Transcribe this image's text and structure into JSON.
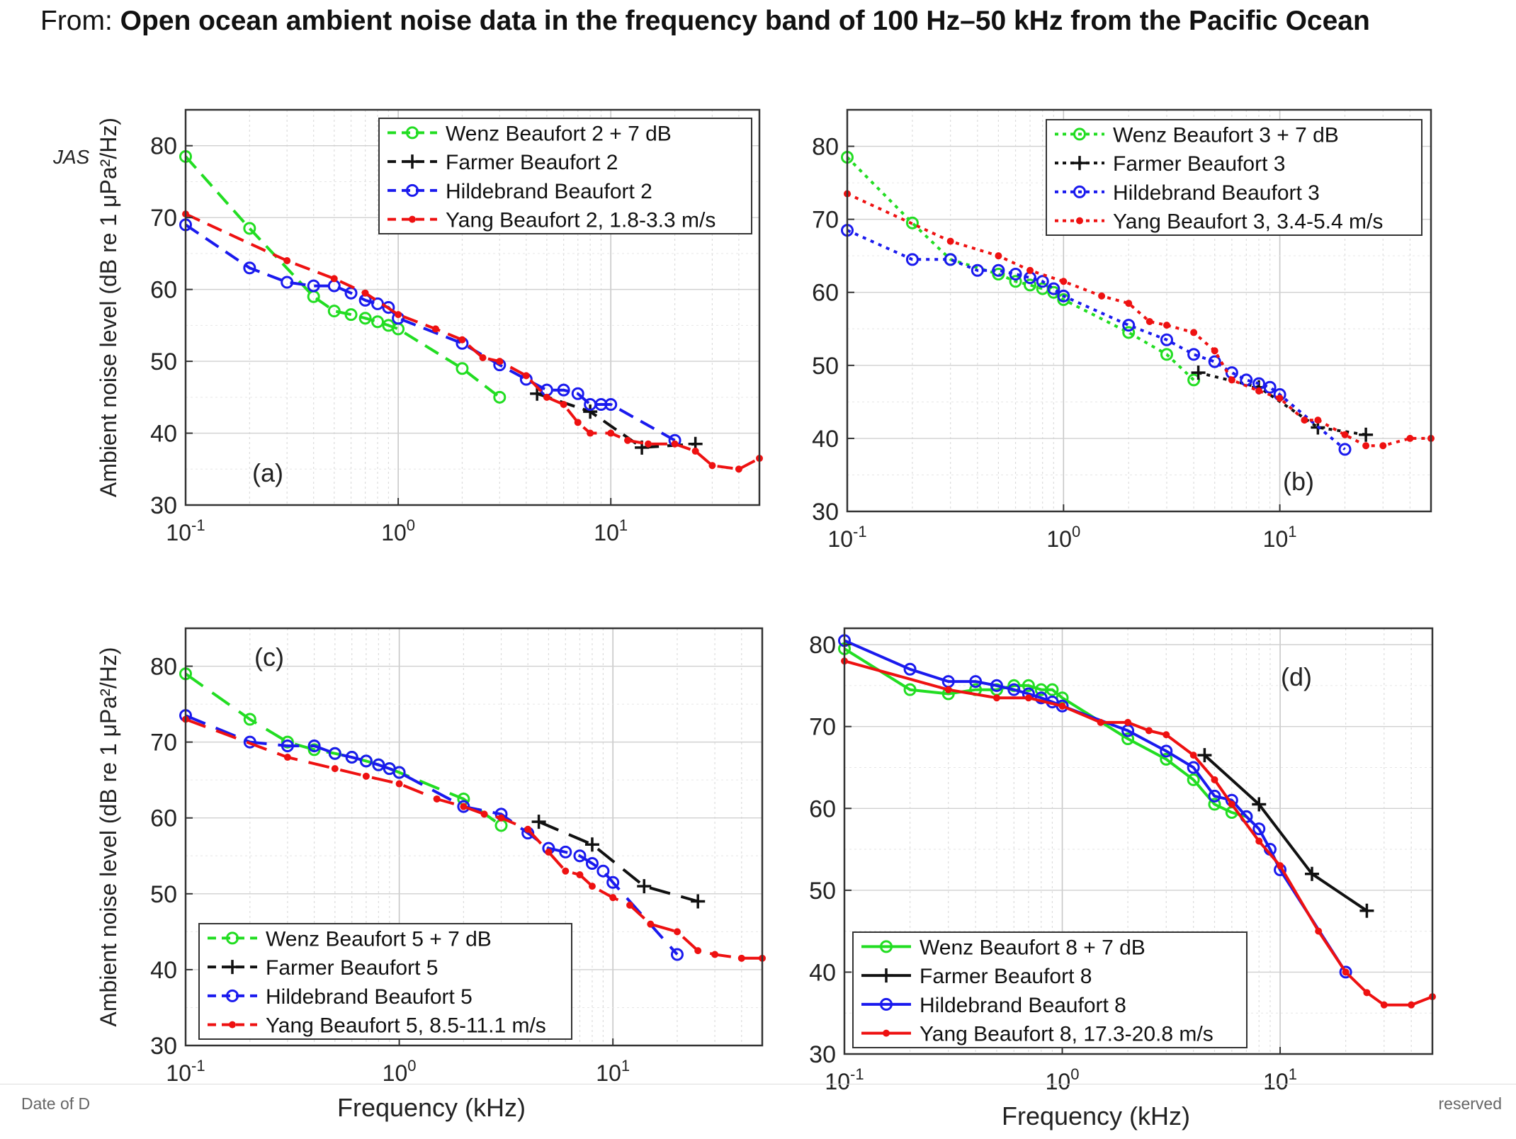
{
  "header": {
    "from_label": "From: ",
    "title": "Open ocean ambient noise data in the frequency band of 100 Hz–50 kHz from the Pacific Ocean"
  },
  "side_text": "JAS",
  "footer": {
    "left": "Date of D",
    "right": "reserved"
  },
  "colors": {
    "wenz": "#22dd22",
    "farmer": "#111111",
    "hildebrand": "#1a1aee",
    "yang": "#ee1111"
  },
  "chart_data": [
    {
      "type": "line",
      "panel_label": "(a)",
      "x_scale": "log",
      "xlim": [
        0.1,
        50
      ],
      "ylim": [
        30,
        85
      ],
      "xticks": [
        "10-1",
        "100",
        "101"
      ],
      "yticks": [
        30,
        40,
        50,
        60,
        70,
        80
      ],
      "xlabel": "",
      "ylabel": "Ambient noise level (dB re 1 μPa²/Hz)",
      "grid": true,
      "line_style": "dashed",
      "legend_position": "top-right",
      "series": [
        {
          "name": "Wenz Beaufort 2 + 7 dB",
          "color_key": "wenz",
          "marker": "circle",
          "x": [
            0.1,
            0.2,
            0.4,
            0.5,
            0.6,
            0.7,
            0.8,
            0.9,
            1.0,
            2.0,
            3.0
          ],
          "y": [
            78.5,
            68.5,
            59,
            57,
            56.5,
            56,
            55.5,
            55,
            54.5,
            49,
            45
          ]
        },
        {
          "name": "Farmer Beaufort 2",
          "color_key": "farmer",
          "marker": "plus",
          "x": [
            4.5,
            8,
            14,
            25
          ],
          "y": [
            45.5,
            43,
            38,
            38.5
          ]
        },
        {
          "name": "Hildebrand Beaufort 2",
          "color_key": "hildebrand",
          "marker": "circle",
          "x": [
            0.1,
            0.2,
            0.3,
            0.4,
            0.5,
            0.6,
            0.7,
            0.8,
            0.9,
            1.0,
            2.0,
            3.0,
            4.0,
            5.0,
            6.0,
            7.0,
            8.0,
            9.0,
            10.0,
            20.0
          ],
          "y": [
            69,
            63,
            61,
            60.5,
            60.5,
            59.5,
            58.5,
            58,
            57.5,
            56,
            52.5,
            49.5,
            47.5,
            46,
            46,
            45.5,
            44,
            44,
            44,
            39
          ]
        },
        {
          "name": "Yang Beaufort 2, 1.8-3.3 m/s",
          "color_key": "yang",
          "marker": "dot",
          "x": [
            0.1,
            0.3,
            0.5,
            0.7,
            1.0,
            1.5,
            2.0,
            2.5,
            3.0,
            4.0,
            5.0,
            6.0,
            7.0,
            8.0,
            10.0,
            12.0,
            15.0,
            20.0,
            25.0,
            30.0,
            40.0,
            50.0
          ],
          "y": [
            70.5,
            64,
            61.5,
            59.5,
            56.5,
            54.5,
            53,
            50.5,
            50,
            48,
            45,
            44,
            41.5,
            40,
            40,
            39,
            38.5,
            38.5,
            37.5,
            35.5,
            35,
            36.5
          ]
        }
      ]
    },
    {
      "type": "line",
      "panel_label": "(b)",
      "x_scale": "log",
      "xlim": [
        0.1,
        50
      ],
      "ylim": [
        30,
        85
      ],
      "xticks": [
        "10-1",
        "100",
        "101"
      ],
      "yticks": [
        30,
        40,
        50,
        60,
        70,
        80
      ],
      "xlabel": "",
      "ylabel": "",
      "grid": true,
      "line_style": "dotted",
      "legend_position": "top-right",
      "series": [
        {
          "name": "Wenz Beaufort 3 + 7 dB",
          "color_key": "wenz",
          "marker": "circle",
          "x": [
            0.1,
            0.2,
            0.3,
            0.5,
            0.6,
            0.7,
            0.8,
            0.9,
            1.0,
            2.0,
            3.0,
            4.0
          ],
          "y": [
            78.5,
            69.5,
            64.5,
            62.5,
            61.5,
            61,
            60.5,
            60,
            59,
            54.5,
            51.5,
            48
          ]
        },
        {
          "name": "Farmer Beaufort 3",
          "color_key": "farmer",
          "marker": "plus",
          "x": [
            4.2,
            8,
            15,
            25
          ],
          "y": [
            49,
            47,
            41.5,
            40.5
          ]
        },
        {
          "name": "Hildebrand Beaufort 3",
          "color_key": "hildebrand",
          "marker": "circle",
          "x": [
            0.1,
            0.2,
            0.3,
            0.4,
            0.5,
            0.6,
            0.7,
            0.8,
            0.9,
            1.0,
            2.0,
            3.0,
            4.0,
            5.0,
            6.0,
            7.0,
            8.0,
            9.0,
            10.0,
            20.0
          ],
          "y": [
            68.5,
            64.5,
            64.5,
            63,
            63,
            62.5,
            62,
            61.5,
            60.5,
            59.5,
            55.5,
            53.5,
            51.5,
            50.5,
            49,
            48,
            47.5,
            47,
            46,
            38.5
          ]
        },
        {
          "name": "Yang Beaufort 3, 3.4-5.4 m/s",
          "color_key": "yang",
          "marker": "dot",
          "x": [
            0.1,
            0.3,
            0.5,
            0.7,
            1.0,
            1.5,
            2.0,
            2.5,
            3.0,
            4.0,
            5.0,
            6.0,
            8.0,
            10.0,
            13.0,
            15.0,
            20.0,
            25.0,
            30.0,
            40.0,
            50.0
          ],
          "y": [
            73.5,
            67,
            65,
            63,
            61.5,
            59.5,
            58.5,
            56,
            55.5,
            54.5,
            52,
            48,
            46.5,
            45.5,
            42.5,
            42.5,
            40.5,
            39,
            39,
            40,
            40
          ]
        }
      ]
    },
    {
      "type": "line",
      "panel_label": "(c)",
      "x_scale": "log",
      "xlim": [
        0.1,
        50
      ],
      "ylim": [
        30,
        85
      ],
      "xticks": [
        "10-1",
        "100",
        "101"
      ],
      "yticks": [
        30,
        40,
        50,
        60,
        70,
        80
      ],
      "xlabel": "Frequency (kHz)",
      "ylabel": "Ambient noise level (dB re 1 μPa²/Hz)",
      "grid": true,
      "line_style": "longdash",
      "legend_position": "bottom-left",
      "series": [
        {
          "name": "Wenz Beaufort 5 + 7 dB",
          "color_key": "wenz",
          "marker": "circle",
          "x": [
            0.1,
            0.2,
            0.3,
            0.4,
            0.5,
            0.6,
            0.7,
            0.8,
            0.9,
            1.0,
            2.0,
            3.0
          ],
          "y": [
            79,
            73,
            70,
            69,
            68.5,
            68,
            67.5,
            67,
            66.5,
            66,
            62.5,
            59
          ]
        },
        {
          "name": "Farmer Beaufort 5",
          "color_key": "farmer",
          "marker": "plus",
          "x": [
            4.5,
            8,
            14,
            25
          ],
          "y": [
            59.5,
            56.5,
            51,
            49
          ]
        },
        {
          "name": "Hildebrand Beaufort 5",
          "color_key": "hildebrand",
          "marker": "circle",
          "x": [
            0.1,
            0.2,
            0.3,
            0.4,
            0.5,
            0.6,
            0.7,
            0.8,
            0.9,
            1.0,
            2.0,
            3.0,
            4.0,
            5.0,
            6.0,
            7.0,
            8.0,
            9.0,
            10.0,
            20.0
          ],
          "y": [
            73.5,
            70,
            69.5,
            69.5,
            68.5,
            68,
            67.5,
            67,
            66.5,
            66,
            61.5,
            60.5,
            58,
            56,
            55.5,
            55,
            54,
            53,
            51.5,
            42
          ]
        },
        {
          "name": "Yang Beaufort 5, 8.5-11.1 m/s",
          "color_key": "yang",
          "marker": "dot",
          "x": [
            0.1,
            0.3,
            0.5,
            0.7,
            1.0,
            1.5,
            2.0,
            2.5,
            3.0,
            4.0,
            5.0,
            6.0,
            7.0,
            8.0,
            10.0,
            12.0,
            15.0,
            20.0,
            25.0,
            30.0,
            40.0,
            50.0
          ],
          "y": [
            73,
            68,
            66.5,
            65.5,
            64.5,
            62.5,
            61.5,
            60.5,
            60,
            58.5,
            55.5,
            53,
            52.5,
            51,
            49.5,
            48.5,
            46,
            45,
            42.5,
            42,
            41.5,
            41.5
          ]
        }
      ]
    },
    {
      "type": "line",
      "panel_label": "(d)",
      "x_scale": "log",
      "xlim": [
        0.1,
        50
      ],
      "ylim": [
        30,
        82
      ],
      "xticks": [
        "10-1",
        "100",
        "101"
      ],
      "yticks": [
        30,
        40,
        50,
        60,
        70,
        80
      ],
      "xlabel": "Frequency (kHz)",
      "ylabel": "",
      "grid": true,
      "line_style": "solid",
      "legend_position": "bottom-left",
      "series": [
        {
          "name": "Wenz Beaufort 8 + 7 dB",
          "color_key": "wenz",
          "marker": "circle",
          "x": [
            0.1,
            0.2,
            0.3,
            0.4,
            0.5,
            0.6,
            0.7,
            0.8,
            0.9,
            1.0,
            2.0,
            3.0,
            4.0,
            5.0,
            6.0,
            7.0
          ],
          "y": [
            79.5,
            74.5,
            74,
            74.5,
            74.5,
            75,
            75,
            74.5,
            74.5,
            73.5,
            68.5,
            66,
            63.5,
            60.5,
            59.5,
            59
          ]
        },
        {
          "name": "Farmer Beaufort 8",
          "color_key": "farmer",
          "marker": "plus",
          "x": [
            4.5,
            8,
            14,
            25
          ],
          "y": [
            66.5,
            60.5,
            52,
            47.5
          ]
        },
        {
          "name": "Hildebrand Beaufort 8",
          "color_key": "hildebrand",
          "marker": "circle",
          "x": [
            0.1,
            0.2,
            0.3,
            0.4,
            0.5,
            0.6,
            0.7,
            0.8,
            0.9,
            1.0,
            2.0,
            3.0,
            4.0,
            5.0,
            6.0,
            7.0,
            8.0,
            9.0,
            10.0,
            20.0
          ],
          "y": [
            80.5,
            77,
            75.5,
            75.5,
            75,
            74.5,
            74,
            73.5,
            73,
            72.5,
            69.5,
            67,
            65,
            61.5,
            61,
            59,
            57.5,
            55,
            52.5,
            40
          ]
        },
        {
          "name": "Yang Beaufort 8, 17.3-20.8 m/s",
          "color_key": "yang",
          "marker": "dot",
          "x": [
            0.1,
            0.3,
            0.5,
            0.7,
            1.0,
            1.5,
            2.0,
            2.5,
            3.0,
            4.0,
            5.0,
            6.0,
            8.0,
            10.0,
            15.0,
            20.0,
            25.0,
            30.0,
            40.0,
            50.0
          ],
          "y": [
            78,
            74.5,
            73.5,
            73.5,
            72.5,
            70.5,
            70.5,
            69.5,
            69,
            66.5,
            63.5,
            60.5,
            56,
            53,
            45,
            40,
            37.5,
            36,
            36,
            37
          ]
        }
      ]
    }
  ]
}
